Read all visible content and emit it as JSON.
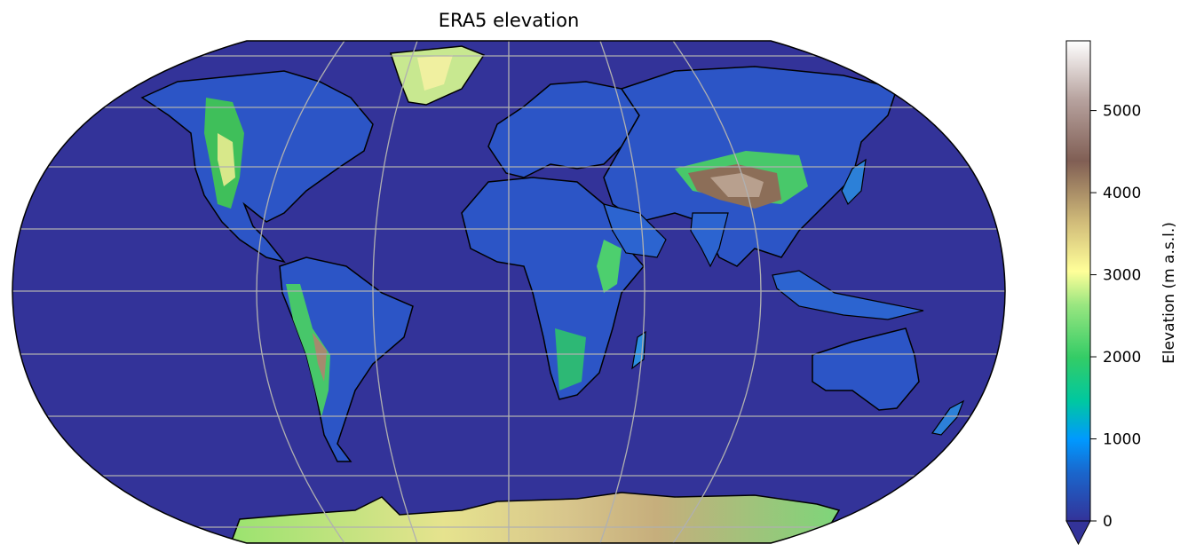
{
  "title": "ERA5 elevation",
  "projection": "Robinson",
  "colormap": "terrain",
  "colorbar": {
    "label": "Elevation (m a.s.l.)",
    "ticks": [
      "0",
      "1000",
      "2000",
      "3000",
      "4000",
      "5000"
    ],
    "tick_values": [
      0,
      1000,
      2000,
      3000,
      4000,
      5000
    ],
    "vmin": 0,
    "vmax": 5850,
    "extend": "min"
  },
  "colors": {
    "ocean_low": "#333399",
    "gridline": "#b0b0b0",
    "coastline": "#000000"
  },
  "gridlines": true
}
